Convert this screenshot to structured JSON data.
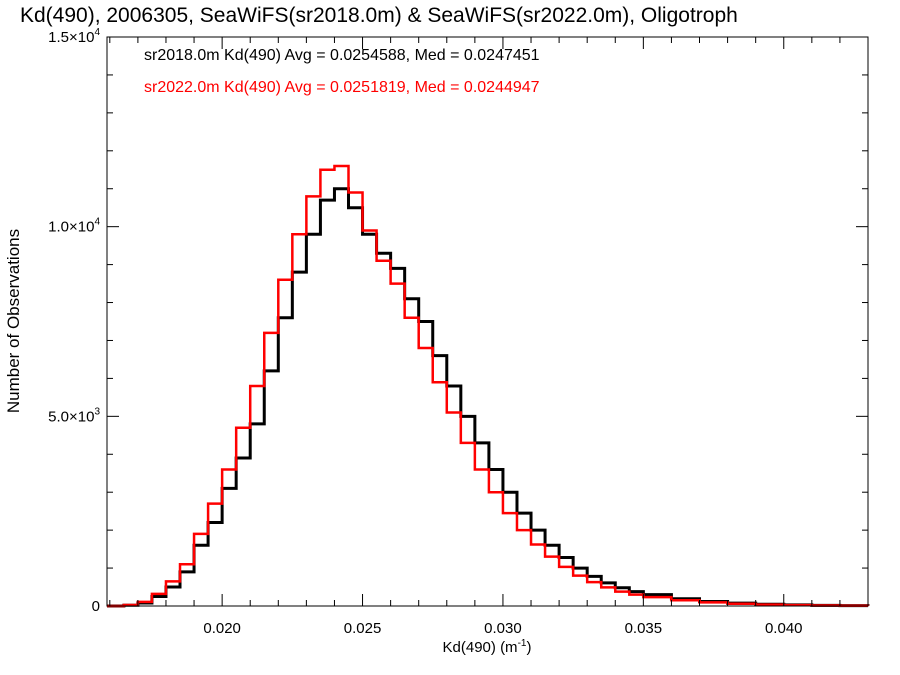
{
  "chart_data": {
    "type": "histogram",
    "title": "Kd(490), 2006305, SeaWiFS(sr2018.0m) & SeaWiFS(sr2022.0m), Oligotroph",
    "xlabel": "Kd(490) (m",
    "xlabel_sup": "-1",
    "xlabel_close": ")",
    "ylabel": "Number of Observations",
    "xlim": [
      0.0159,
      0.043
    ],
    "ylim": [
      0,
      15000
    ],
    "x_ticks": [
      0.02,
      0.025,
      0.03,
      0.035,
      0.04
    ],
    "x_tick_labels": [
      "0.020",
      "0.025",
      "0.030",
      "0.035",
      "0.040"
    ],
    "y_ticks": [
      {
        "value": 0,
        "mant": "0",
        "exp": ""
      },
      {
        "value": 5000,
        "mant": "5.0×10",
        "exp": "3"
      },
      {
        "value": 10000,
        "mant": "1.0×10",
        "exp": "4"
      },
      {
        "value": 15000,
        "mant": "1.5×10",
        "exp": "4"
      }
    ],
    "legend": [
      {
        "text": "sr2018.0m Kd(490) Avg = 0.0254588, Med = 0.0247451",
        "color": "#000000"
      },
      {
        "text": "sr2022.0m Kd(490) Avg = 0.0251819, Med = 0.0244947",
        "color": "#ff0000"
      }
    ],
    "series": [
      {
        "name": "sr2018.0m",
        "color": "#000000",
        "points": [
          [
            0.0159,
            0
          ],
          [
            0.0165,
            20
          ],
          [
            0.017,
            80
          ],
          [
            0.0175,
            250
          ],
          [
            0.018,
            500
          ],
          [
            0.0185,
            900
          ],
          [
            0.019,
            1600
          ],
          [
            0.0195,
            2200
          ],
          [
            0.02,
            3100
          ],
          [
            0.0205,
            3900
          ],
          [
            0.021,
            4800
          ],
          [
            0.0215,
            6200
          ],
          [
            0.022,
            7600
          ],
          [
            0.0225,
            8800
          ],
          [
            0.023,
            9800
          ],
          [
            0.0235,
            10700
          ],
          [
            0.024,
            11000
          ],
          [
            0.0245,
            10500
          ],
          [
            0.025,
            9800
          ],
          [
            0.0255,
            9300
          ],
          [
            0.026,
            8900
          ],
          [
            0.0265,
            8100
          ],
          [
            0.027,
            7500
          ],
          [
            0.0275,
            6600
          ],
          [
            0.028,
            5800
          ],
          [
            0.0285,
            5000
          ],
          [
            0.029,
            4300
          ],
          [
            0.0295,
            3600
          ],
          [
            0.03,
            3000
          ],
          [
            0.0305,
            2450
          ],
          [
            0.031,
            2000
          ],
          [
            0.0315,
            1600
          ],
          [
            0.032,
            1280
          ],
          [
            0.0325,
            1000
          ],
          [
            0.033,
            780
          ],
          [
            0.0335,
            610
          ],
          [
            0.034,
            480
          ],
          [
            0.0345,
            380
          ],
          [
            0.035,
            300
          ],
          [
            0.036,
            190
          ],
          [
            0.037,
            120
          ],
          [
            0.038,
            75
          ],
          [
            0.039,
            45
          ],
          [
            0.04,
            30
          ],
          [
            0.041,
            18
          ],
          [
            0.042,
            10
          ],
          [
            0.043,
            5
          ]
        ]
      },
      {
        "name": "sr2022.0m",
        "color": "#ff0000",
        "points": [
          [
            0.0159,
            0
          ],
          [
            0.0165,
            25
          ],
          [
            0.017,
            110
          ],
          [
            0.0175,
            320
          ],
          [
            0.018,
            650
          ],
          [
            0.0185,
            1100
          ],
          [
            0.019,
            1900
          ],
          [
            0.0195,
            2700
          ],
          [
            0.02,
            3600
          ],
          [
            0.0205,
            4700
          ],
          [
            0.021,
            5800
          ],
          [
            0.0215,
            7200
          ],
          [
            0.022,
            8600
          ],
          [
            0.0225,
            9800
          ],
          [
            0.023,
            10800
          ],
          [
            0.0235,
            11500
          ],
          [
            0.024,
            11600
          ],
          [
            0.0245,
            10900
          ],
          [
            0.025,
            9900
          ],
          [
            0.0255,
            9100
          ],
          [
            0.026,
            8500
          ],
          [
            0.0265,
            7600
          ],
          [
            0.027,
            6800
          ],
          [
            0.0275,
            5900
          ],
          [
            0.028,
            5100
          ],
          [
            0.0285,
            4300
          ],
          [
            0.029,
            3600
          ],
          [
            0.0295,
            3000
          ],
          [
            0.03,
            2450
          ],
          [
            0.0305,
            2000
          ],
          [
            0.031,
            1620
          ],
          [
            0.0315,
            1300
          ],
          [
            0.032,
            1030
          ],
          [
            0.0325,
            800
          ],
          [
            0.033,
            630
          ],
          [
            0.0335,
            490
          ],
          [
            0.034,
            380
          ],
          [
            0.0345,
            300
          ],
          [
            0.035,
            235
          ],
          [
            0.036,
            150
          ],
          [
            0.037,
            95
          ],
          [
            0.038,
            60
          ],
          [
            0.039,
            36
          ],
          [
            0.04,
            22
          ],
          [
            0.041,
            13
          ],
          [
            0.042,
            8
          ],
          [
            0.043,
            4
          ]
        ]
      }
    ]
  }
}
